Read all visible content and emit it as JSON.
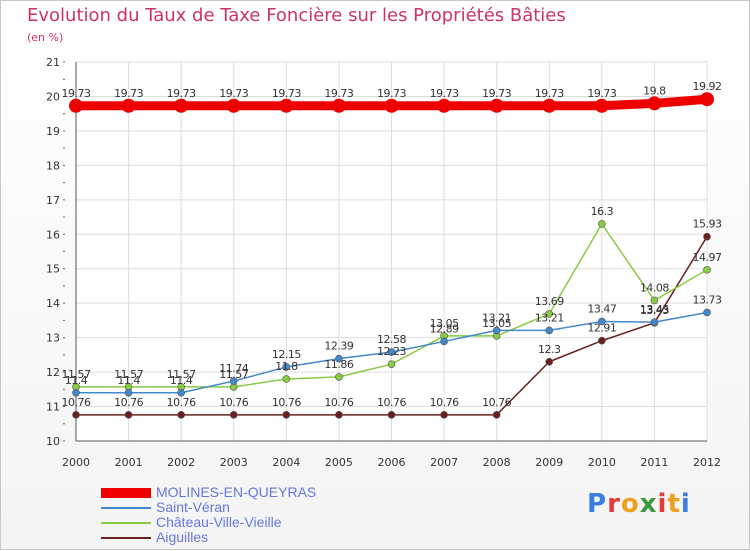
{
  "title": "Evolution du Taux de Taxe Foncière sur les Propriétés Bâties",
  "unit": "(en %)",
  "logo": [
    "P",
    "r",
    "o",
    "x",
    "i",
    "t",
    "i"
  ],
  "logo_colors": [
    "#3b7de0",
    "#e23b3b",
    "#f0a020",
    "#3a9a3a",
    "#e23b3b",
    "#f0a020",
    "#3b7de0"
  ],
  "chart_data": {
    "type": "line",
    "title": "Evolution du Taux de Taxe Foncière sur les Propriétés Bâties",
    "ylabel": "(en %)",
    "xlabel": "",
    "x": [
      "2000",
      "2001",
      "2002",
      "2003",
      "2004",
      "2005",
      "2006",
      "2007",
      "2008",
      "2009",
      "2010",
      "2011",
      "2012"
    ],
    "ylim": [
      10,
      21
    ],
    "yticks": [
      "10",
      "11",
      "12",
      "13",
      "14",
      "15",
      "16",
      "17",
      "18",
      "19",
      "20",
      "21"
    ],
    "legend_position": "bottom-left",
    "series": [
      {
        "name": "MOLINES-EN-QUEYRAS",
        "color": "#ee0000",
        "values": [
          19.73,
          19.73,
          19.73,
          19.73,
          19.73,
          19.73,
          19.73,
          19.73,
          19.73,
          19.73,
          19.73,
          19.8,
          19.92
        ],
        "labels": [
          "19.73",
          "19.73",
          "19.73",
          "19.73",
          "19.73",
          "19.73",
          "19.73",
          "19.73",
          "19.73",
          "19.73",
          "19.73",
          "19.8",
          "19.92"
        ]
      },
      {
        "name": "Saint-Véran",
        "color": "#4488cc",
        "values": [
          11.4,
          11.4,
          11.4,
          11.74,
          12.15,
          12.39,
          12.58,
          12.89,
          13.21,
          13.21,
          13.47,
          13.45,
          13.73
        ],
        "labels": [
          "11.4",
          "11.4",
          "11.4",
          "11.74",
          "12.15",
          "12.39",
          "12.58",
          "12.89",
          "13.21",
          "13.21",
          "13.47",
          "13.45",
          "13.73"
        ]
      },
      {
        "name": "Château-Ville-Vieille",
        "color": "#88cc44",
        "values": [
          11.57,
          11.57,
          11.57,
          11.57,
          11.8,
          11.86,
          12.23,
          13.05,
          13.05,
          13.69,
          16.3,
          14.08,
          14.97
        ],
        "labels": [
          "11.57",
          "11.57",
          "11.57",
          "11.57",
          "11.8",
          "11.86",
          "12.23",
          "13.05",
          "13.05",
          "13.69",
          "16.3",
          "14.08",
          "14.97"
        ]
      },
      {
        "name": "Aiguilles",
        "color": "#6b2020",
        "values": [
          10.76,
          10.76,
          10.76,
          10.76,
          10.76,
          10.76,
          10.76,
          10.76,
          10.76,
          12.3,
          12.91,
          13.43,
          15.93
        ],
        "labels": [
          "10.76",
          "10.76",
          "10.76",
          "10.76",
          "10.76",
          "10.76",
          "10.76",
          "10.76",
          "10.76",
          "12.3",
          "12.91",
          "13.43",
          "15.93"
        ]
      }
    ]
  }
}
